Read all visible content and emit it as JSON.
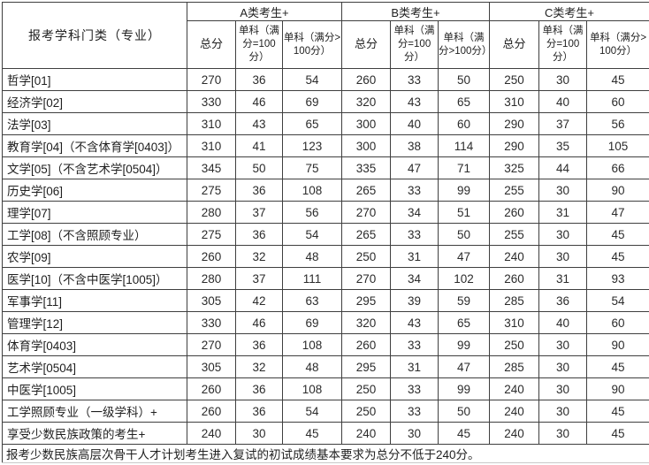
{
  "table": {
    "row_header": "报考学科门类（专业）",
    "col_groups": [
      {
        "label": "A类考生+"
      },
      {
        "label": "B类考生+"
      },
      {
        "label": "C类考生+"
      }
    ],
    "sub_cols": [
      "总分",
      "单科（满分=100分）",
      "单科（满分>100分）"
    ],
    "rows": [
      {
        "label": "哲学[01]",
        "a": [
          270,
          36,
          54
        ],
        "b": [
          260,
          33,
          50
        ],
        "c": [
          250,
          30,
          45
        ]
      },
      {
        "label": "经济学[02]",
        "a": [
          330,
          46,
          69
        ],
        "b": [
          320,
          43,
          65
        ],
        "c": [
          310,
          40,
          60
        ]
      },
      {
        "label": "法学[03]",
        "a": [
          310,
          43,
          65
        ],
        "b": [
          300,
          40,
          60
        ],
        "c": [
          290,
          37,
          56
        ]
      },
      {
        "label": "教育学[04]（不含体育学[0403]）",
        "a": [
          310,
          41,
          123
        ],
        "b": [
          300,
          38,
          114
        ],
        "c": [
          290,
          35,
          105
        ]
      },
      {
        "label": "文学[05]（不含艺术学[0504]）",
        "a": [
          345,
          50,
          75
        ],
        "b": [
          335,
          47,
          71
        ],
        "c": [
          325,
          44,
          66
        ]
      },
      {
        "label": "历史学[06]",
        "a": [
          275,
          36,
          108
        ],
        "b": [
          265,
          33,
          99
        ],
        "c": [
          255,
          30,
          90
        ]
      },
      {
        "label": "理学[07]",
        "a": [
          280,
          37,
          56
        ],
        "b": [
          270,
          34,
          51
        ],
        "c": [
          260,
          31,
          47
        ]
      },
      {
        "label": "工学[08]（不含照顾专业）",
        "a": [
          275,
          36,
          54
        ],
        "b": [
          265,
          33,
          50
        ],
        "c": [
          255,
          30,
          45
        ]
      },
      {
        "label": "农学[09]",
        "a": [
          260,
          32,
          48
        ],
        "b": [
          250,
          31,
          47
        ],
        "c": [
          240,
          30,
          45
        ]
      },
      {
        "label": "医学[10]（不含中医学[1005]）",
        "a": [
          280,
          37,
          111
        ],
        "b": [
          270,
          34,
          102
        ],
        "c": [
          260,
          31,
          93
        ]
      },
      {
        "label": "军事学[11]",
        "a": [
          305,
          42,
          63
        ],
        "b": [
          295,
          39,
          59
        ],
        "c": [
          285,
          36,
          54
        ]
      },
      {
        "label": "管理学[12]",
        "a": [
          330,
          46,
          69
        ],
        "b": [
          320,
          43,
          65
        ],
        "c": [
          310,
          40,
          60
        ]
      },
      {
        "label": "体育学[0403]",
        "a": [
          270,
          36,
          108
        ],
        "b": [
          260,
          33,
          99
        ],
        "c": [
          250,
          30,
          90
        ]
      },
      {
        "label": "艺术学[0504]",
        "a": [
          305,
          32,
          48
        ],
        "b": [
          295,
          31,
          47
        ],
        "c": [
          285,
          30,
          45
        ]
      },
      {
        "label": "中医学[1005]",
        "a": [
          260,
          36,
          108
        ],
        "b": [
          250,
          33,
          99
        ],
        "c": [
          240,
          30,
          90
        ]
      },
      {
        "label": "工学照顾专业（一级学科）+",
        "a": [
          260,
          36,
          54
        ],
        "b": [
          250,
          33,
          50
        ],
        "c": [
          240,
          30,
          45
        ]
      },
      {
        "label": "享受少数民族政策的考生+",
        "a": [
          240,
          30,
          45
        ],
        "b": [
          240,
          30,
          45
        ],
        "c": [
          240,
          30,
          45
        ]
      }
    ],
    "footnote": "报考少数民族高层次骨干人才计划考生进入复试的初试成绩基本要求为总分不低于240分。"
  }
}
